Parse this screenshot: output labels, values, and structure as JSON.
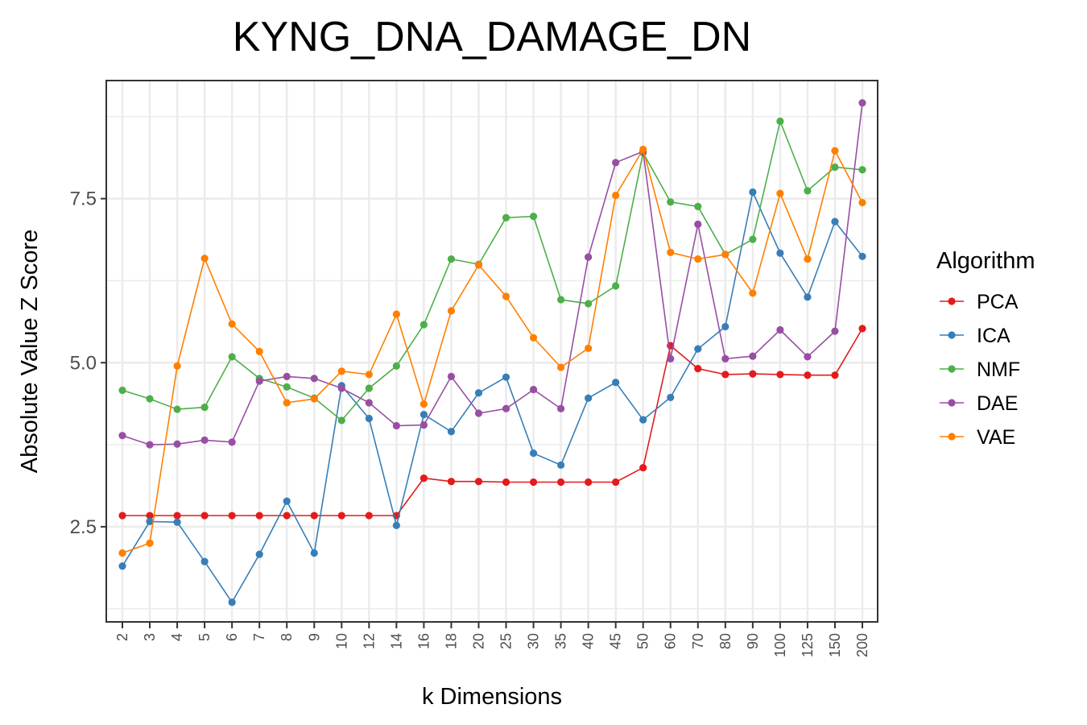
{
  "chart_data": {
    "type": "line",
    "title": "KYNG_DNA_DAMAGE_DN",
    "xlabel": "k Dimensions",
    "ylabel": "Absolute Value Z Score",
    "ylim": [
      1.05,
      9.3
    ],
    "y_ticks": [
      2.5,
      5.0,
      7.5
    ],
    "y_tick_labels": [
      "2.5",
      "5.0",
      "7.5"
    ],
    "grid": true,
    "legend_title": "Algorithm",
    "legend_position": "right",
    "categories": [
      "2",
      "3",
      "4",
      "5",
      "6",
      "7",
      "8",
      "9",
      "10",
      "12",
      "14",
      "16",
      "18",
      "20",
      "25",
      "30",
      "35",
      "40",
      "45",
      "50",
      "60",
      "70",
      "80",
      "90",
      "100",
      "125",
      "150",
      "200"
    ],
    "series": [
      {
        "name": "PCA",
        "color": "#e41a1c",
        "values": [
          2.67,
          2.67,
          2.67,
          2.67,
          2.67,
          2.67,
          2.67,
          2.67,
          2.67,
          2.67,
          2.67,
          3.24,
          3.19,
          3.19,
          3.18,
          3.18,
          3.18,
          3.18,
          3.18,
          3.4,
          5.26,
          4.91,
          4.82,
          4.83,
          4.82,
          4.81,
          4.81,
          5.52
        ]
      },
      {
        "name": "ICA",
        "color": "#377eb8",
        "values": [
          1.9,
          2.58,
          2.57,
          1.97,
          1.35,
          2.08,
          2.89,
          2.1,
          4.65,
          4.15,
          2.52,
          4.21,
          3.95,
          4.54,
          4.78,
          3.62,
          3.44,
          4.46,
          4.7,
          4.13,
          4.47,
          5.21,
          5.55,
          7.6,
          6.67,
          6.0,
          7.15,
          6.62
        ]
      },
      {
        "name": "NMF",
        "color": "#4daf4a",
        "values": [
          4.58,
          4.45,
          4.29,
          4.32,
          5.09,
          4.76,
          4.63,
          4.46,
          4.12,
          4.61,
          4.95,
          5.58,
          6.58,
          6.5,
          7.21,
          7.23,
          5.96,
          5.9,
          6.17,
          8.2,
          7.45,
          7.38,
          6.65,
          6.88,
          8.68,
          7.62,
          7.98,
          7.94
        ]
      },
      {
        "name": "DAE",
        "color": "#984ea3",
        "values": [
          3.89,
          3.75,
          3.76,
          3.82,
          3.79,
          4.72,
          4.79,
          4.76,
          4.61,
          4.39,
          4.04,
          4.05,
          4.79,
          4.23,
          4.3,
          4.59,
          4.3,
          6.61,
          8.05,
          8.22,
          5.06,
          7.11,
          5.06,
          5.1,
          5.5,
          5.09,
          5.48,
          8.96
        ]
      },
      {
        "name": "VAE",
        "color": "#ff7f00",
        "values": [
          2.1,
          2.25,
          4.95,
          6.59,
          5.59,
          5.17,
          4.39,
          4.45,
          4.87,
          4.82,
          5.74,
          4.37,
          5.79,
          6.49,
          6.01,
          5.38,
          4.93,
          5.22,
          7.55,
          8.25,
          6.68,
          6.58,
          6.65,
          6.06,
          7.58,
          6.58,
          8.23,
          7.44
        ]
      }
    ]
  }
}
